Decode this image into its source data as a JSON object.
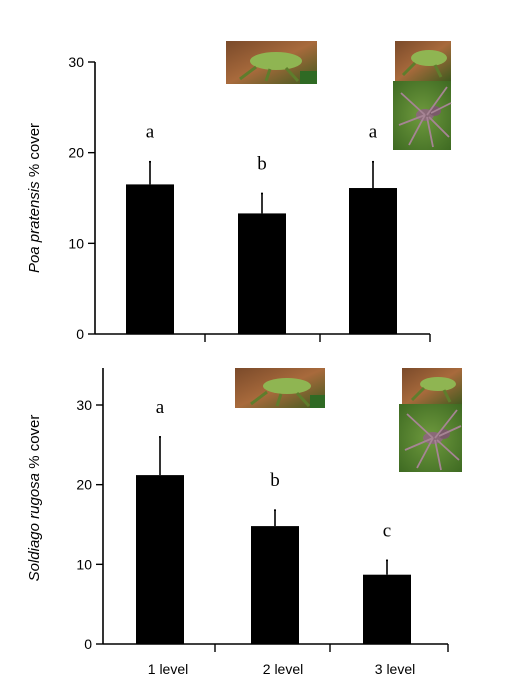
{
  "chart_data": [
    {
      "type": "bar",
      "ylabel_species": "Poa pratensis",
      "ylabel_rest": " % cover",
      "categories": [
        "1 level",
        "2 level",
        "3 level"
      ],
      "show_category_labels": false,
      "values": [
        16.5,
        13.3,
        16.1
      ],
      "error_upper": [
        19.0,
        15.5,
        19.0
      ],
      "significance": [
        "a",
        "b",
        "a"
      ],
      "ylim": [
        0,
        30
      ],
      "yticks": [
        0,
        10,
        20,
        30
      ],
      "grid": false,
      "icons": [
        {
          "name": "grasshopper-icon",
          "over": "2 level"
        },
        {
          "name": "grasshopper-icon",
          "over": "3 level"
        },
        {
          "name": "spider-icon",
          "over": "3 level"
        }
      ]
    },
    {
      "type": "bar",
      "ylabel_species": "Soldiago rugosa",
      "ylabel_rest": " % cover",
      "categories": [
        "1 level",
        "2 level",
        "3 level"
      ],
      "show_category_labels": true,
      "values": [
        21.2,
        14.8,
        8.7
      ],
      "error_upper": [
        26.0,
        16.8,
        10.5
      ],
      "significance": [
        "a",
        "b",
        "c"
      ],
      "ylim": [
        0,
        35
      ],
      "yticks": [
        0,
        10,
        20,
        30
      ],
      "grid": false,
      "icons": [
        {
          "name": "grasshopper-icon",
          "over": "2 level"
        },
        {
          "name": "grasshopper-icon",
          "over": "3 level"
        },
        {
          "name": "spider-icon",
          "over": "3 level"
        }
      ]
    }
  ]
}
